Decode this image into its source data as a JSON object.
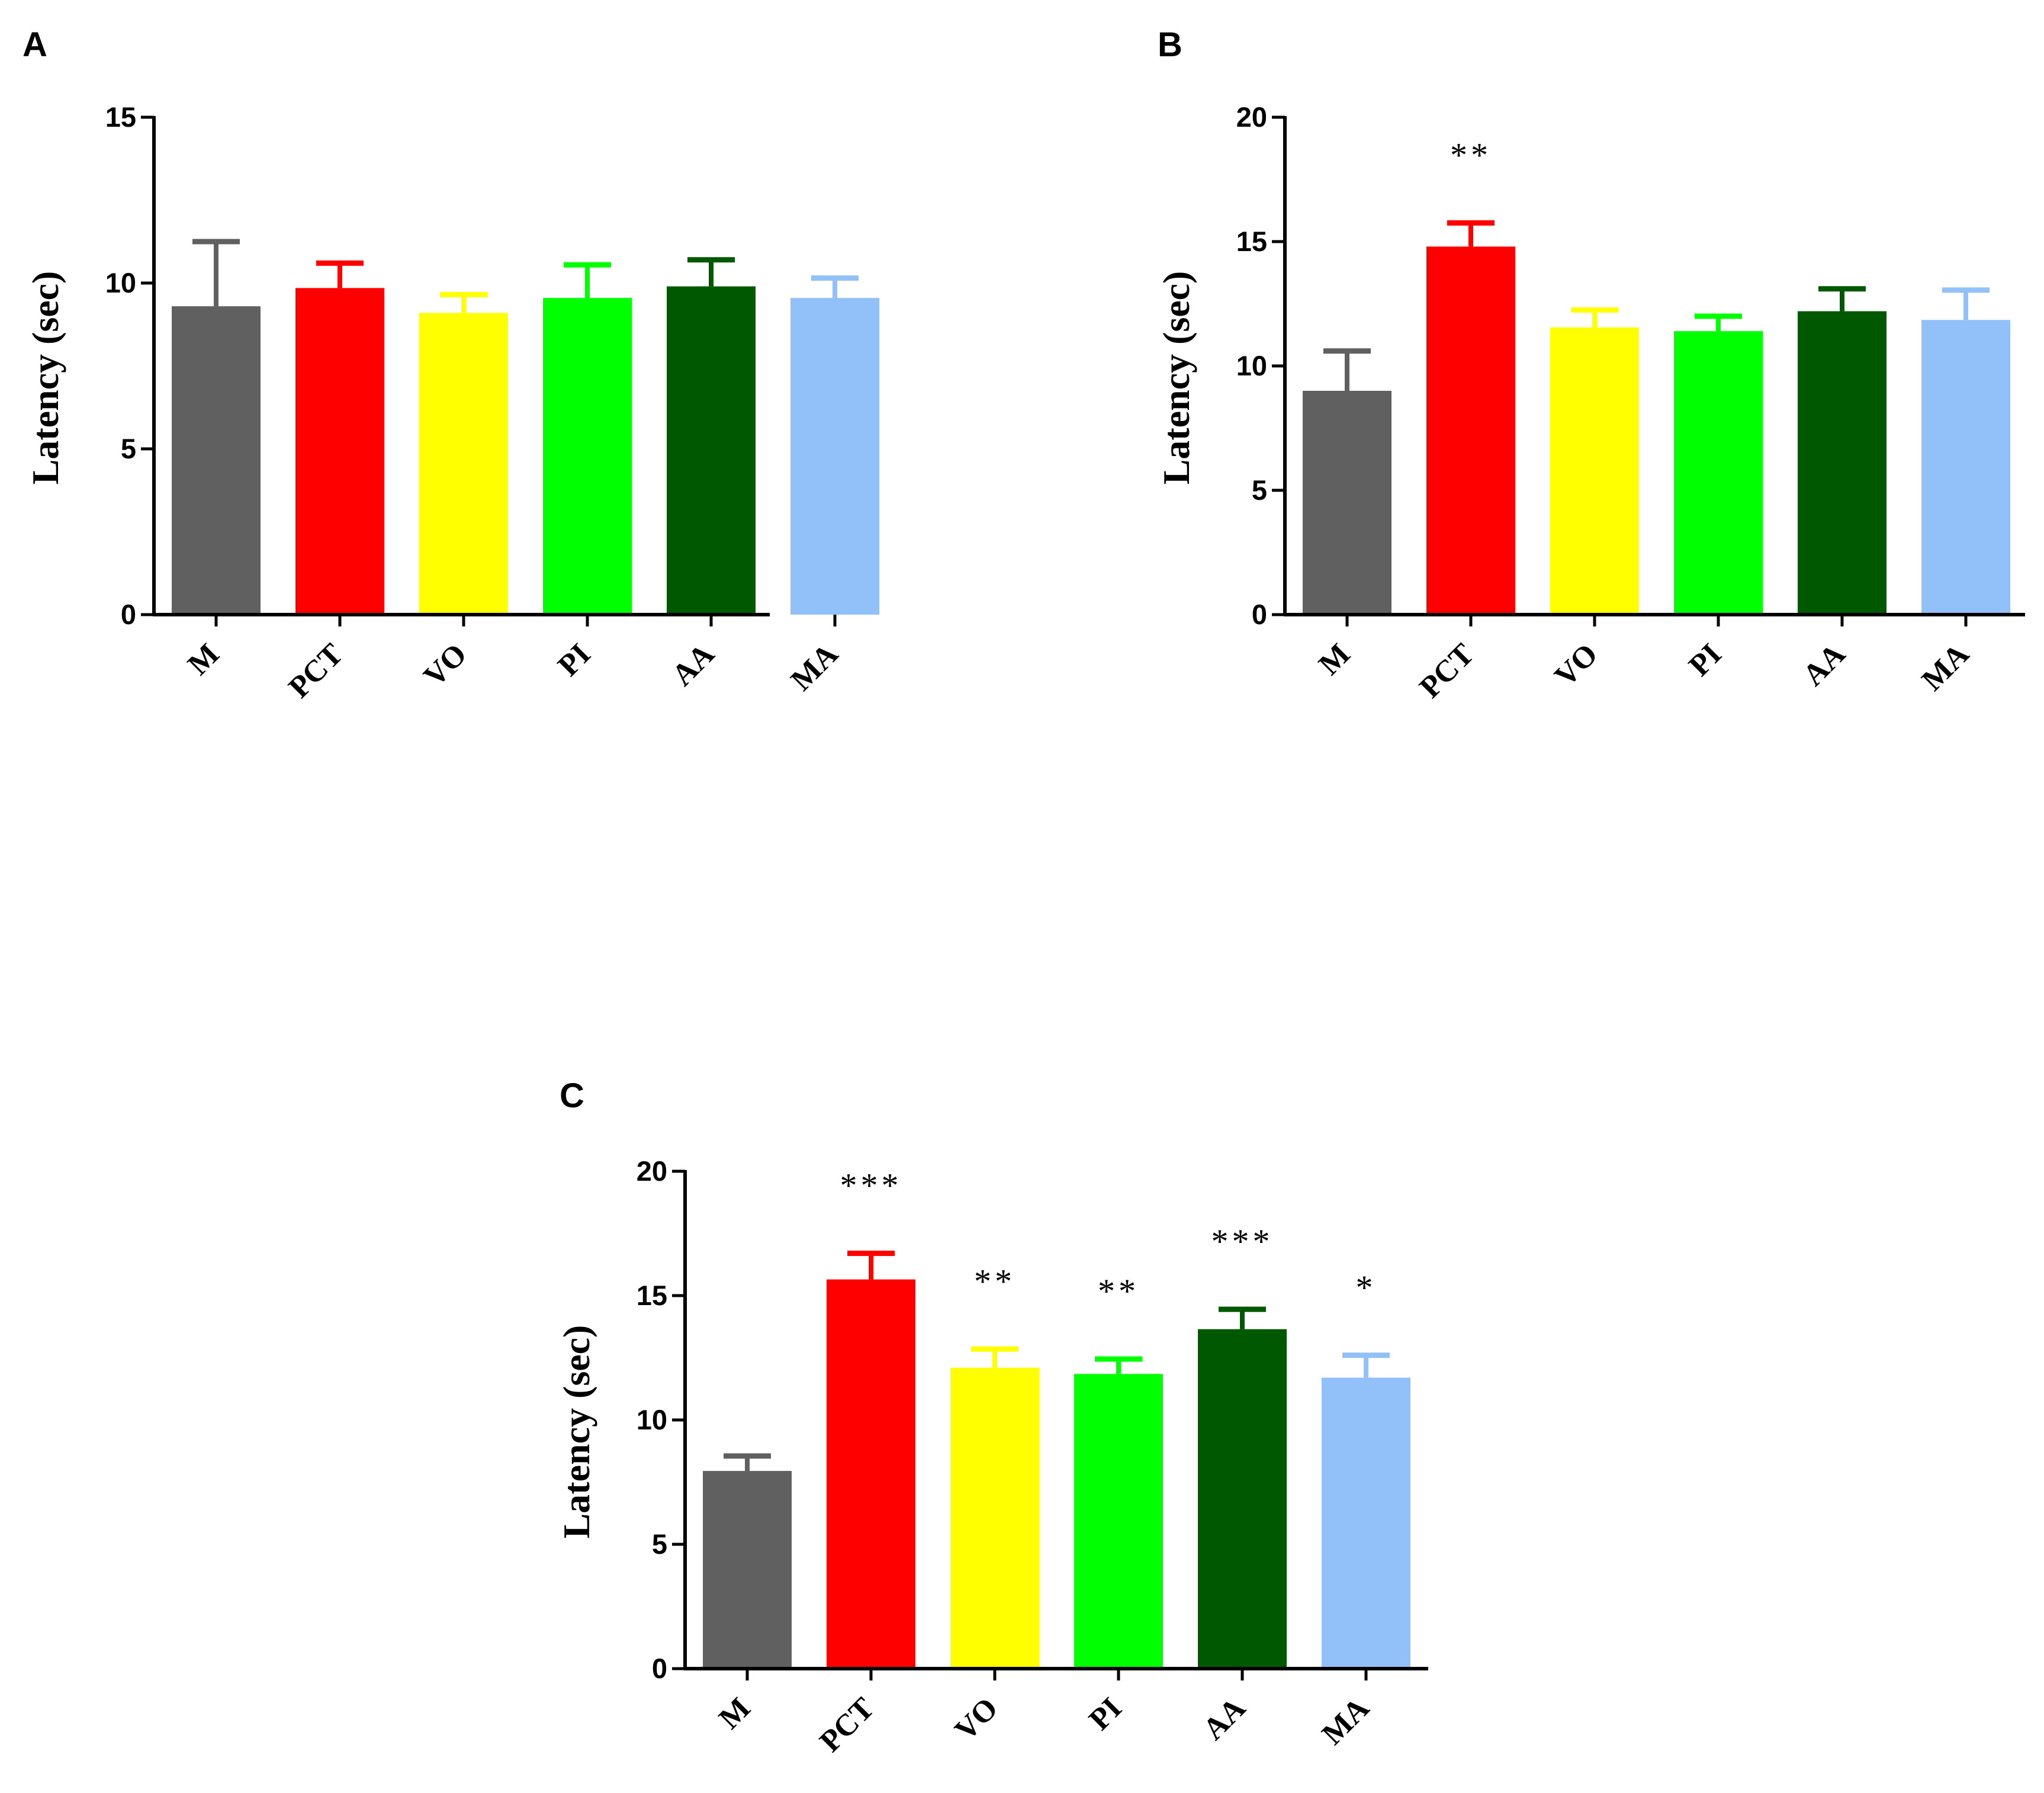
{
  "chart_data": [
    {
      "panel": "A",
      "type": "bar",
      "ylabel": "Latency (sec)",
      "ylim": [
        0,
        15
      ],
      "yticks": [
        0,
        5,
        10,
        15
      ],
      "categories": [
        "M",
        "PCT",
        "VO",
        "PI",
        "AA",
        "MA"
      ],
      "values": [
        9.3,
        9.85,
        9.1,
        9.55,
        9.9,
        9.55
      ],
      "errors": [
        1.95,
        0.75,
        0.55,
        1.0,
        0.8,
        0.6
      ],
      "significance": [
        "",
        "",
        "",
        "",
        "",
        ""
      ],
      "colors": [
        "#606060",
        "#ff0000",
        "#ffff00",
        "#00ff00",
        "#005800",
        "#92c0f8"
      ]
    },
    {
      "panel": "B",
      "type": "bar",
      "ylabel": "Latency (sec)",
      "ylim": [
        0,
        20
      ],
      "yticks": [
        0,
        5,
        10,
        15,
        20
      ],
      "categories": [
        "M",
        "PCT",
        "VO",
        "PI",
        "AA",
        "MA"
      ],
      "values": [
        9.0,
        14.8,
        11.55,
        11.4,
        12.2,
        11.85
      ],
      "errors": [
        1.6,
        0.95,
        0.7,
        0.6,
        0.9,
        1.2
      ],
      "significance": [
        "",
        "**",
        "",
        "",
        "",
        ""
      ],
      "colors": [
        "#606060",
        "#ff0000",
        "#ffff00",
        "#00ff00",
        "#005800",
        "#92c0f8"
      ]
    },
    {
      "panel": "C",
      "type": "bar",
      "ylabel": "Latency (sec)",
      "ylim": [
        0,
        20
      ],
      "yticks": [
        0,
        5,
        10,
        15,
        20
      ],
      "categories": [
        "M",
        "PCT",
        "VO",
        "PI",
        "AA",
        "MA"
      ],
      "values": [
        7.95,
        15.65,
        12.1,
        11.85,
        13.65,
        11.7
      ],
      "errors": [
        0.6,
        1.05,
        0.75,
        0.6,
        0.8,
        0.9
      ],
      "significance": [
        "",
        "***",
        "**",
        "**",
        "***",
        "*"
      ],
      "colors": [
        "#606060",
        "#ff0000",
        "#ffff00",
        "#00ff00",
        "#005800",
        "#92c0f8"
      ]
    }
  ]
}
